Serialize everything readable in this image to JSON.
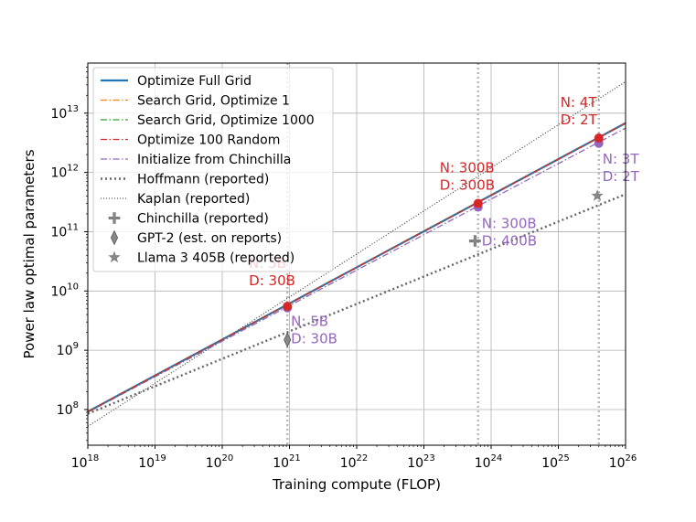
{
  "chart_data": {
    "type": "line",
    "xlabel": "Training compute (FLOP)",
    "ylabel": "Power law optimal parameters",
    "xscale": "log",
    "yscale": "log",
    "xlim": [
      1e+18,
      1e+26
    ],
    "ylim": [
      25000000,
      70000000000000
    ],
    "grid": true,
    "legend_position": "upper-left",
    "x_ticks": [
      {
        "base": "10",
        "exp": "18"
      },
      {
        "base": "10",
        "exp": "19"
      },
      {
        "base": "10",
        "exp": "20"
      },
      {
        "base": "10",
        "exp": "21"
      },
      {
        "base": "10",
        "exp": "22"
      },
      {
        "base": "10",
        "exp": "23"
      },
      {
        "base": "10",
        "exp": "24"
      },
      {
        "base": "10",
        "exp": "25"
      },
      {
        "base": "10",
        "exp": "26"
      }
    ],
    "y_ticks": [
      {
        "base": "10",
        "exp": "8"
      },
      {
        "base": "10",
        "exp": "9"
      },
      {
        "base": "10",
        "exp": "10"
      },
      {
        "base": "10",
        "exp": "11"
      },
      {
        "base": "10",
        "exp": "12"
      },
      {
        "base": "10",
        "exp": "13"
      }
    ],
    "reference_compute": [
      9.3e+20,
      6.4e+23,
      4e+25
    ],
    "series": [
      {
        "name": "Optimize Full Grid",
        "color": "#1f77b4",
        "style": "solid",
        "x": [
          1e+18,
          1e+26
        ],
        "y": [
          92000000,
          6800000000000
        ]
      },
      {
        "name": "Search Grid, Optimize 1",
        "color": "#ff7f0e",
        "style": "dashdot",
        "x": [
          1e+18,
          1e+26
        ],
        "y": [
          92000000,
          6800000000000
        ]
      },
      {
        "name": "Search Grid, Optimize 1000",
        "color": "#2ca02c",
        "style": "dashdot",
        "x": [
          1e+18,
          1e+26
        ],
        "y": [
          92000000,
          6800000000000
        ]
      },
      {
        "name": "Optimize 100 Random",
        "color": "#d62728",
        "style": "dashdot",
        "x": [
          1e+18,
          1e+26
        ],
        "y": [
          92000000,
          6800000000000
        ]
      },
      {
        "name": "Initialize from Chinchilla",
        "color": "#9467bd",
        "style": "dashdot",
        "x": [
          1e+18,
          1e+26
        ],
        "y": [
          90000000,
          5600000000000
        ]
      },
      {
        "name": "Hoffmann (reported)",
        "color": "#666666",
        "style": "dotted",
        "x": [
          1e+18,
          1e+26
        ],
        "y": [
          85000000,
          430000000000
        ]
      },
      {
        "name": "Kaplan (reported)",
        "color": "#333333",
        "style": "dotted-fine",
        "x": [
          1e+18,
          1e+26
        ],
        "y": [
          52000000,
          34000000000000
        ]
      }
    ],
    "markers": [
      {
        "name": "Chinchilla (reported)",
        "shape": "plus",
        "color": "#888888",
        "x": 5.76e+23,
        "y": 70000000000
      },
      {
        "name": "GPT-2 (est. on reports)",
        "shape": "diamond",
        "color": "#888888",
        "x": 9.3e+20,
        "y": 1500000000
      },
      {
        "name": "Llama 3 405B (reported)",
        "shape": "star",
        "color": "#888888",
        "x": 3.8e+25,
        "y": 405000000000
      }
    ],
    "optimal_points": [
      {
        "series": "Optimize 100 Random",
        "color": "#d62728",
        "x": 9.3e+20,
        "y": 5500000000
      },
      {
        "series": "Optimize 100 Random",
        "color": "#d62728",
        "x": 6.4e+23,
        "y": 300000000000
      },
      {
        "series": "Optimize 100 Random",
        "color": "#d62728",
        "x": 4e+25,
        "y": 3800000000000
      },
      {
        "series": "Initialize from Chinchilla",
        "color": "#9467bd",
        "x": 9.3e+20,
        "y": 5200000000
      },
      {
        "series": "Initialize from Chinchilla",
        "color": "#9467bd",
        "x": 6.4e+23,
        "y": 260000000000
      },
      {
        "series": "Initialize from Chinchilla",
        "color": "#9467bd",
        "x": 4e+25,
        "y": 3100000000000
      }
    ],
    "annotations": [
      {
        "id": "red-small",
        "color": "#d62728",
        "lines": [
          "N: 5B",
          "D: 30B"
        ],
        "x": 9.3e+20,
        "y": 5500000000
      },
      {
        "id": "red-mid",
        "color": "#d62728",
        "lines": [
          "N: 300B",
          "D: 300B"
        ],
        "x": 6.4e+23,
        "y": 300000000000
      },
      {
        "id": "red-large",
        "color": "#d62728",
        "lines": [
          "N: 4T",
          "D: 2T"
        ],
        "x": 4e+25,
        "y": 3800000000000
      },
      {
        "id": "purple-small",
        "color": "#9467bd",
        "lines": [
          "N: 5B",
          "D: 30B"
        ],
        "x": 9.3e+20,
        "y": 5200000000
      },
      {
        "id": "purple-mid",
        "color": "#9467bd",
        "lines": [
          "N: 300B",
          "D: 400B"
        ],
        "x": 6.4e+23,
        "y": 260000000000
      },
      {
        "id": "purple-large",
        "color": "#9467bd",
        "lines": [
          "N: 3T",
          "D: 2T"
        ],
        "x": 4e+25,
        "y": 3100000000000
      }
    ],
    "legend": [
      {
        "label": "Optimize Full Grid",
        "kind": "line",
        "color": "#1f77b4",
        "style": "solid"
      },
      {
        "label": "Search Grid, Optimize 1",
        "kind": "line",
        "color": "#ff7f0e",
        "style": "dashdot"
      },
      {
        "label": "Search Grid, Optimize 1000",
        "kind": "line",
        "color": "#2ca02c",
        "style": "dashdot"
      },
      {
        "label": "Optimize 100 Random",
        "kind": "line",
        "color": "#d62728",
        "style": "dashdot"
      },
      {
        "label": "Initialize from Chinchilla",
        "kind": "line",
        "color": "#9467bd",
        "style": "dashdot"
      },
      {
        "label": "Hoffmann (reported)",
        "kind": "line",
        "color": "#666666",
        "style": "dotted"
      },
      {
        "label": "Kaplan (reported)",
        "kind": "line",
        "color": "#333333",
        "style": "dotted-fine"
      },
      {
        "label": "Chinchilla (reported)",
        "kind": "marker",
        "shape": "plus",
        "color": "#888888"
      },
      {
        "label": "GPT-2 (est. on reports)",
        "kind": "marker",
        "shape": "diamond",
        "color": "#888888"
      },
      {
        "label": "Llama 3 405B (reported)",
        "kind": "marker",
        "shape": "star",
        "color": "#888888"
      }
    ]
  }
}
